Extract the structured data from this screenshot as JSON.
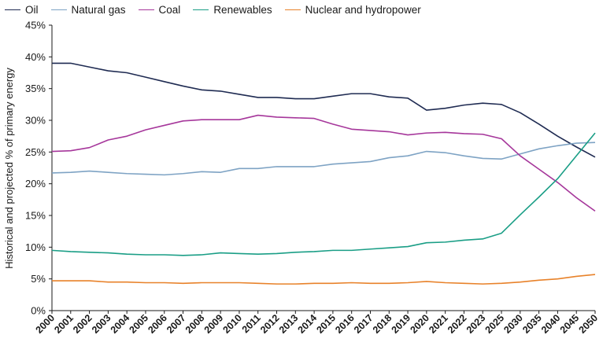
{
  "chart_data": {
    "type": "line",
    "title": "",
    "xlabel": "",
    "ylabel": "Historical and projected % of primary energy",
    "categories": [
      "2000",
      "2001",
      "2002",
      "2003",
      "2004",
      "2005",
      "2006",
      "2007",
      "2008",
      "2009",
      "2010",
      "2011",
      "2012",
      "2013",
      "2014",
      "2015",
      "2016",
      "2017",
      "2018",
      "2019",
      "2020",
      "2021",
      "2022",
      "2023",
      "2025",
      "2030",
      "2035",
      "2040",
      "2045",
      "2050"
    ],
    "ylim": [
      0,
      45
    ],
    "yticks": [
      0,
      5,
      10,
      15,
      20,
      25,
      30,
      35,
      40,
      45
    ],
    "ytick_labels": [
      "0%",
      "5%",
      "10%",
      "15%",
      "20%",
      "25%",
      "30%",
      "35%",
      "40%",
      "45%"
    ],
    "grid": false,
    "legend_position": "top-left",
    "series": [
      {
        "name": "Oil",
        "color": "#1f2b52",
        "values": [
          39.0,
          39.0,
          38.4,
          37.8,
          37.5,
          36.8,
          36.1,
          35.4,
          34.8,
          34.6,
          34.1,
          33.6,
          33.6,
          33.4,
          33.4,
          33.8,
          34.2,
          34.2,
          33.7,
          33.5,
          31.6,
          31.9,
          32.4,
          32.7,
          32.5,
          31.2,
          29.4,
          27.5,
          25.8,
          24.2
        ]
      },
      {
        "name": "Natural gas",
        "color": "#7ea3c4",
        "values": [
          21.7,
          21.8,
          22.0,
          21.8,
          21.6,
          21.5,
          21.4,
          21.6,
          21.9,
          21.8,
          22.4,
          22.4,
          22.7,
          22.7,
          22.7,
          23.1,
          23.3,
          23.5,
          24.1,
          24.4,
          25.1,
          24.9,
          24.4,
          24.0,
          23.9,
          24.7,
          25.5,
          26.0,
          26.4,
          26.5
        ]
      },
      {
        "name": "Coal",
        "color": "#a6379b",
        "values": [
          25.1,
          25.2,
          25.7,
          26.9,
          27.5,
          28.5,
          29.2,
          29.9,
          30.1,
          30.1,
          30.1,
          30.8,
          30.5,
          30.4,
          30.3,
          29.4,
          28.6,
          28.4,
          28.2,
          27.7,
          28.0,
          28.1,
          27.9,
          27.8,
          27.1,
          24.4,
          22.3,
          20.2,
          17.8,
          15.7
        ]
      },
      {
        "name": "Renewables",
        "color": "#1a9e86",
        "values": [
          9.5,
          9.3,
          9.2,
          9.1,
          8.9,
          8.8,
          8.8,
          8.7,
          8.8,
          9.1,
          9.0,
          8.9,
          9.0,
          9.2,
          9.3,
          9.5,
          9.5,
          9.7,
          9.9,
          10.1,
          10.7,
          10.8,
          11.1,
          11.3,
          12.2,
          15.1,
          17.9,
          20.8,
          24.4,
          28.0
        ]
      },
      {
        "name": "Nuclear and hydropower",
        "color": "#e8822a",
        "values": [
          4.7,
          4.7,
          4.7,
          4.5,
          4.5,
          4.4,
          4.4,
          4.3,
          4.4,
          4.4,
          4.4,
          4.3,
          4.2,
          4.2,
          4.3,
          4.3,
          4.4,
          4.3,
          4.3,
          4.4,
          4.6,
          4.4,
          4.3,
          4.2,
          4.3,
          4.5,
          4.8,
          5.0,
          5.4,
          5.7
        ]
      }
    ]
  }
}
